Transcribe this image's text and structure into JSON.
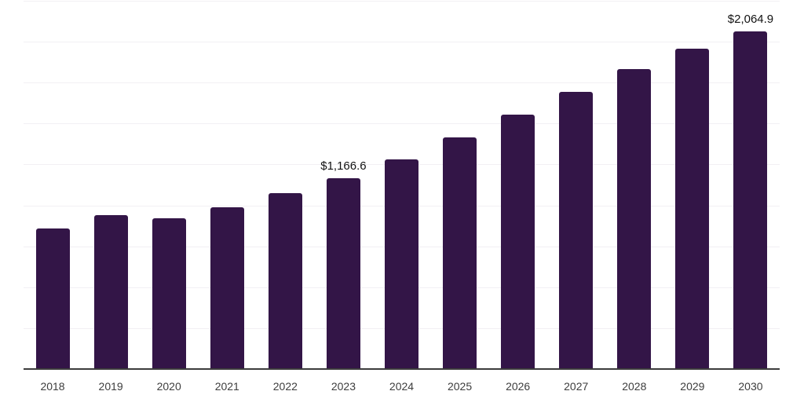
{
  "chart": {
    "background_color": "#ffffff",
    "bar_color": "#331547",
    "grid_color": "#f2f0f4",
    "axis_color": "#3d3d3d",
    "tick_label_color": "#3d3d3d",
    "data_label_color": "#121212"
  },
  "chart_data": {
    "type": "bar",
    "title": "",
    "xlabel": "",
    "ylabel": "",
    "categories": [
      "2018",
      "2019",
      "2020",
      "2021",
      "2022",
      "2023",
      "2024",
      "2025",
      "2026",
      "2027",
      "2028",
      "2029",
      "2030"
    ],
    "values": [
      860,
      938,
      922,
      986,
      1075,
      1166.6,
      1280,
      1415,
      1556,
      1695,
      1834,
      1959,
      2064.9
    ],
    "data_labels": {
      "2023": "$1,166.6",
      "2030": "$2,064.9"
    },
    "ylim": [
      0,
      2250
    ],
    "grid_step": 250,
    "grid": "horizontal, no y-axis tick labels",
    "legend": "none"
  }
}
